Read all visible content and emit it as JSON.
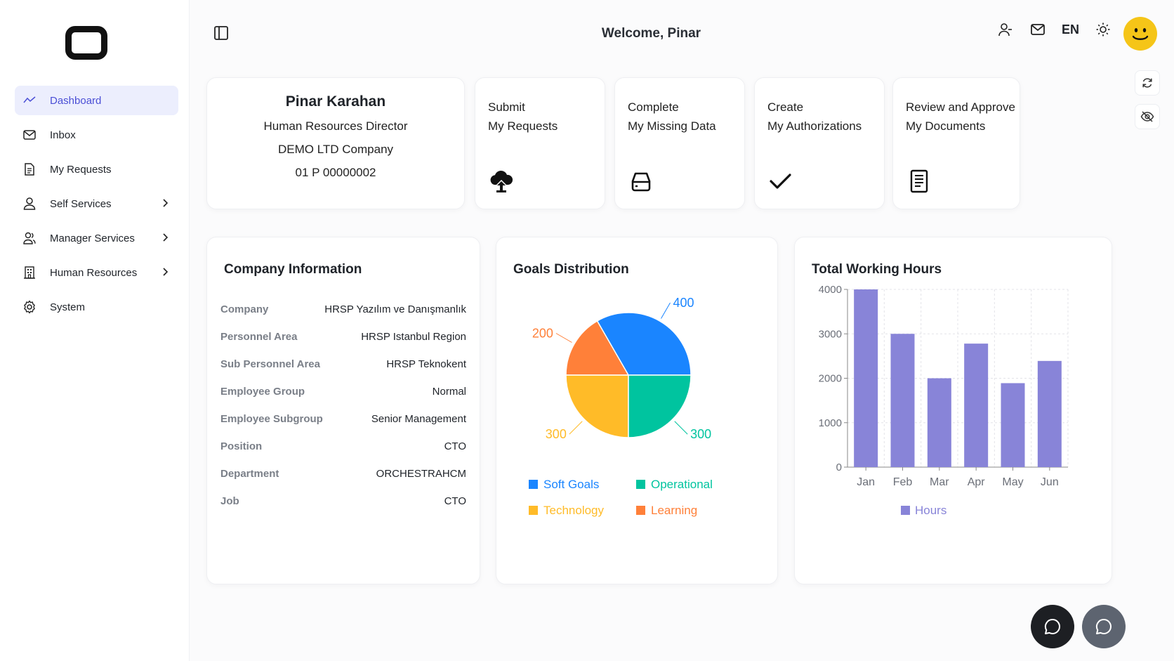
{
  "header": {
    "welcome": "Welcome, Pinar",
    "lang": "EN"
  },
  "sidebar": {
    "items": [
      {
        "label": "Dashboard",
        "icon": "chart-line-icon",
        "active": true
      },
      {
        "label": "Inbox",
        "icon": "mail-icon"
      },
      {
        "label": "My Requests",
        "icon": "document-icon"
      },
      {
        "label": "Self Services",
        "icon": "user-icon",
        "chevron": true
      },
      {
        "label": "Manager Services",
        "icon": "users-icon",
        "chevron": true
      },
      {
        "label": "Human Resources",
        "icon": "building-icon",
        "chevron": true
      },
      {
        "label": "System",
        "icon": "gear-icon"
      }
    ]
  },
  "profile": {
    "name": "Pinar Karahan",
    "title": "Human Resources Director",
    "company": "DEMO LTD Company",
    "id": "01 P 00000002"
  },
  "actions": [
    {
      "line1": "Submit",
      "line2": "My Requests",
      "icon": "cloud-upload-icon"
    },
    {
      "line1": "Complete",
      "line2": "My Missing Data",
      "icon": "drive-icon"
    },
    {
      "line1": "Create",
      "line2": "My Authorizations",
      "icon": "check-icon"
    },
    {
      "line1": "Review and Approve",
      "line2": "My Documents",
      "icon": "file-text-icon"
    }
  ],
  "company_info": {
    "title": "Company Information",
    "rows": [
      {
        "key": "Company",
        "value": "HRSP Yazılım ve Danışmanlık"
      },
      {
        "key": "Personnel Area",
        "value": "HRSP Istanbul Region"
      },
      {
        "key": "Sub Personnel Area",
        "value": "HRSP Teknokent"
      },
      {
        "key": "Employee Group",
        "value": "Normal"
      },
      {
        "key": "Employee Subgroup",
        "value": "Senior Management"
      },
      {
        "key": "Position",
        "value": "CTO"
      },
      {
        "key": "Department",
        "value": "ORCHESTRAHCM"
      },
      {
        "key": "Job",
        "value": "CTO"
      }
    ]
  },
  "chart_data": [
    {
      "type": "pie",
      "title": "Goals Distribution",
      "categories": [
        "Soft Goals",
        "Learning",
        "Technology",
        "Operational"
      ],
      "values": [
        400,
        200,
        300,
        300
      ],
      "colors": [
        "#1a85ff",
        "#ff8039",
        "#ffbb28",
        "#00c49f"
      ],
      "legend_order": [
        "Soft Goals",
        "Operational",
        "Technology",
        "Learning"
      ],
      "legend": "bottom"
    },
    {
      "type": "bar",
      "title": "Total Working Hours",
      "categories": [
        "Jan",
        "Feb",
        "Mar",
        "Apr",
        "May",
        "Jun"
      ],
      "series": [
        {
          "name": "Hours",
          "values": [
            4000,
            3000,
            2000,
            2780,
            1890,
            2390
          ]
        }
      ],
      "yticks": [
        0,
        1000,
        2000,
        3000,
        4000
      ],
      "ylim": [
        0,
        4000
      ],
      "color": "#8884d8",
      "grid": true,
      "legend": "bottom"
    }
  ]
}
